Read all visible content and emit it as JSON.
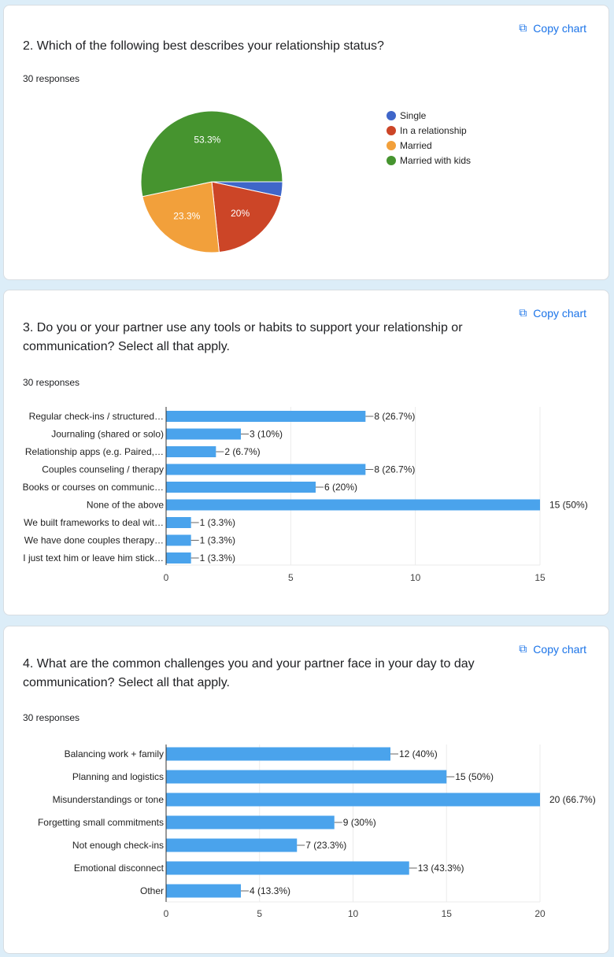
{
  "copy_label": "Copy chart",
  "cards": [
    {
      "title": "2. Which of the following best describes your relationship status?",
      "responses": "30 responses"
    },
    {
      "title": "3. Do you or your partner use any tools or habits to support your relationship or communication? Select all that apply.",
      "responses": "30 responses"
    },
    {
      "title": "4. What are the common challenges you and your partner face in your day to day communication? Select all that apply.",
      "responses": "30 responses"
    }
  ],
  "chart_data": [
    {
      "type": "pie",
      "categories": [
        "Single",
        "In a relationship",
        "Married",
        "Married with kids"
      ],
      "values": [
        1,
        6,
        7,
        16
      ],
      "labels": [
        "",
        "20%",
        "23.3%",
        "53.3%"
      ],
      "colors": [
        "#3f66c9",
        "#cc4527",
        "#f2a03b",
        "#46942f"
      ],
      "legend": "right"
    },
    {
      "type": "bar",
      "orientation": "horizontal",
      "categories": [
        "Regular check-ins / structured…",
        "Journaling (shared or solo)",
        "Relationship apps (e.g. Paired,…",
        "Couples counseling / therapy",
        "Books or courses on communic…",
        "None of the above",
        "We built frameworks to deal wit…",
        "We have done couples therapy…",
        "I just text him or leave him stick…"
      ],
      "values": [
        8,
        3,
        2,
        8,
        6,
        15,
        1,
        1,
        1
      ],
      "data_labels": [
        "8 (26.7%)",
        "3 (10%)",
        "2 (6.7%)",
        "8 (26.7%)",
        "6 (20%)",
        "15 (50%)",
        "1 (3.3%)",
        "1 (3.3%)",
        "1 (3.3%)"
      ],
      "xticks": [
        0,
        5,
        10,
        15
      ],
      "xlim": [
        0,
        15
      ],
      "color": "#4aa3ec",
      "grid": true
    },
    {
      "type": "bar",
      "orientation": "horizontal",
      "categories": [
        "Balancing work + family",
        "Planning and logistics",
        "Misunderstandings or tone",
        "Forgetting small commitments",
        "Not enough check-ins",
        "Emotional disconnect",
        "Other"
      ],
      "values": [
        12,
        15,
        20,
        9,
        7,
        13,
        4
      ],
      "data_labels": [
        "12 (40%)",
        "15 (50%)",
        "20 (66.7%)",
        "9 (30%)",
        "7 (23.3%)",
        "13 (43.3%)",
        "4 (13.3%)"
      ],
      "xticks": [
        0,
        5,
        10,
        15,
        20
      ],
      "xlim": [
        0,
        20
      ],
      "color": "#4aa3ec",
      "grid": true
    }
  ]
}
